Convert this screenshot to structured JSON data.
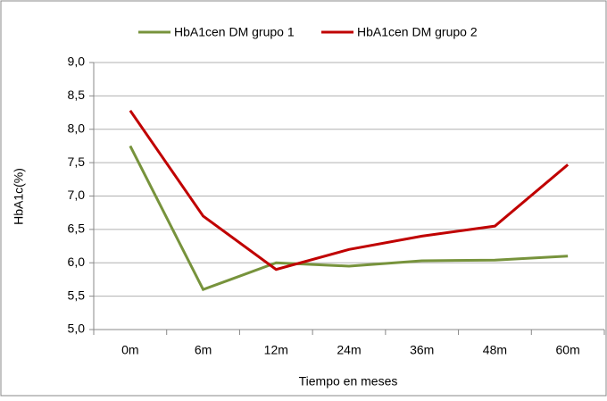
{
  "chart_data": {
    "type": "line",
    "x_label": "Tiempo en meses",
    "y_label": "HbA1c(%)",
    "categories": [
      "0m",
      "6m",
      "12m",
      "24m",
      "36m",
      "48m",
      "60m"
    ],
    "series": [
      {
        "name": "HbA1cen DM grupo 1",
        "color": "#77933c",
        "values": [
          7.75,
          5.6,
          6.0,
          5.95,
          6.03,
          6.04,
          6.1
        ]
      },
      {
        "name": "HbA1cen DM grupo 2",
        "color": "#c00000",
        "values": [
          8.28,
          6.7,
          5.9,
          6.2,
          6.4,
          6.55,
          7.47
        ]
      }
    ],
    "ylim": [
      5.0,
      9.0
    ],
    "yticks": [
      {
        "value": 5.0,
        "label": "5,0"
      },
      {
        "value": 5.5,
        "label": "5,5"
      },
      {
        "value": 6.0,
        "label": "6,0"
      },
      {
        "value": 6.5,
        "label": "6,5"
      },
      {
        "value": 7.0,
        "label": "7,0"
      },
      {
        "value": 7.5,
        "label": "7,5"
      },
      {
        "value": 8.0,
        "label": "8,0"
      },
      {
        "value": 8.5,
        "label": "8,5"
      },
      {
        "value": 9.0,
        "label": "9,0"
      }
    ],
    "grid": true,
    "legend": "top"
  }
}
